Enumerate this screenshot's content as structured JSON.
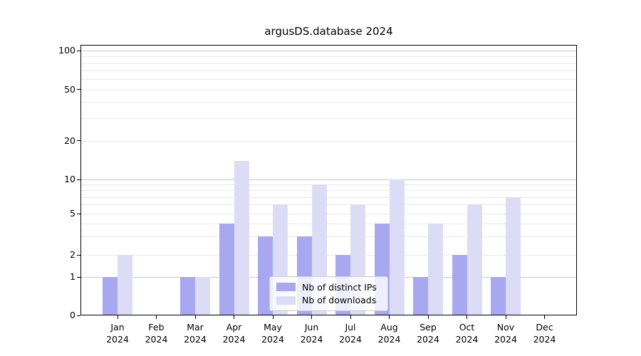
{
  "title": "argusDS.database 2024",
  "chart_data": {
    "type": "bar",
    "title": "argusDS.database 2024",
    "categories": [
      "Jan",
      "Feb",
      "Mar",
      "Apr",
      "May",
      "Jun",
      "Jul",
      "Aug",
      "Sep",
      "Oct",
      "Nov",
      "Dec"
    ],
    "category_year": "2024",
    "series": [
      {
        "name": "Nb of distinct IPs",
        "color": "#a8a8f0",
        "values": [
          1,
          0,
          1,
          4,
          3,
          3,
          2,
          4,
          1,
          2,
          1,
          0
        ]
      },
      {
        "name": "Nb of downloads",
        "color": "#dcdcf7",
        "values": [
          2,
          0,
          1,
          14,
          6,
          9,
          6,
          10,
          4,
          6,
          7,
          0
        ]
      }
    ],
    "yticks": [
      0,
      1,
      2,
      5,
      10,
      20,
      50,
      100
    ],
    "major_grid_values": [
      1,
      10,
      100
    ],
    "minor_grid_values": [
      2,
      3,
      4,
      5,
      6,
      7,
      8,
      9,
      20,
      30,
      40,
      50,
      60,
      70,
      80,
      90
    ],
    "ylim": [
      0,
      110
    ],
    "yscale": "symlog-like",
    "grid": true,
    "legend_position": "lower center",
    "colors": {
      "major_grid": "#c8c8c8",
      "minor_grid": "#eaeaea",
      "axis": "#000000",
      "text": "#000000",
      "legend_border": "#cccccc"
    }
  }
}
